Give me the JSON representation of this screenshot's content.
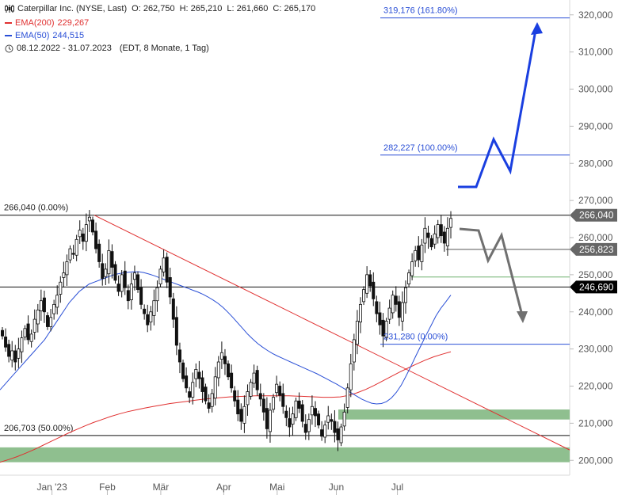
{
  "header": {
    "title": "Caterpillar Inc. (NYSE, Last)",
    "open": "O: 262,750",
    "high": "H: 265,210",
    "low": "L: 261,660",
    "close": "C: 265,170",
    "ema200_label": "EMA(200)",
    "ema200_value": "229,267",
    "ema50_label": "EMA(50)",
    "ema50_value": "244,515",
    "range": "08.12.2022 - 31.07.2023",
    "range_detail": "(EDT, 8 Monate, 1 Tag)",
    "icon": "candlestick-icon",
    "clock_icon": "clock-icon"
  },
  "colors": {
    "ema200": "#e03030",
    "ema50": "#2a4fd6",
    "projection_up": "#1a3fe0",
    "projection_down": "#707070",
    "zone": "#8fbf8f",
    "trendline": "#e03030",
    "fib_text": "#2a4fd6"
  },
  "chart_data": {
    "type": "candlestick",
    "ylim": [
      196000,
      324000
    ],
    "y_ticks": [
      200000,
      210000,
      220000,
      230000,
      240000,
      250000,
      260000,
      270000,
      280000,
      290000,
      300000,
      310000,
      320000
    ],
    "y_tick_labels": [
      "200,000",
      "210,000",
      "220,000",
      "230,000",
      "240,000",
      "250,000",
      "260,000",
      "270,000",
      "280,000",
      "290,000",
      "300,000",
      "310,000",
      "320,000"
    ],
    "x_labels": [
      "Jan '23",
      "Feb",
      "Mär",
      "Apr",
      "Mai",
      "Jun",
      "Jul"
    ],
    "x_label_dates": [
      "2023-01-03",
      "2023-02-01",
      "2023-03-01",
      "2023-04-03",
      "2023-05-01",
      "2023-06-01",
      "2023-07-03"
    ],
    "x_start": "2022-12-08",
    "x_end": "2023-07-31",
    "closes": [
      233500,
      230500,
      228000,
      229500,
      226500,
      230000,
      233000,
      235500,
      232500,
      234000,
      238000,
      240500,
      243000,
      240000,
      236000,
      238500,
      242000,
      244500,
      248000,
      250500,
      253500,
      257000,
      255500,
      259500,
      262000,
      259000,
      263500,
      265500,
      261500,
      257000,
      253500,
      249000,
      251500,
      256500,
      252000,
      248500,
      245500,
      250000,
      246500,
      243000,
      247500,
      250500,
      246000,
      242000,
      239500,
      236500,
      240000,
      243000,
      246500,
      251500,
      254500,
      248000,
      244000,
      238000,
      231000,
      226500,
      222000,
      219500,
      217000,
      221000,
      224500,
      222000,
      218500,
      216000,
      214000,
      218000,
      222500,
      226500,
      229000,
      226000,
      222500,
      219500,
      216000,
      212500,
      210500,
      214500,
      218500,
      221000,
      223500,
      219000,
      216500,
      213000,
      208500,
      213500,
      217000,
      220500,
      217500,
      214500,
      211500,
      209000,
      212500,
      216000,
      214000,
      210500,
      207500,
      211000,
      214500,
      212000,
      209500,
      206500,
      209500,
      212000,
      210500,
      207500,
      205500,
      209000,
      213000,
      219500,
      226000,
      232500,
      237500,
      242000,
      246000,
      250000,
      247000,
      243500,
      239500,
      236500,
      233500,
      237500,
      241000,
      244500,
      242000,
      238500,
      242500,
      246500,
      250500,
      253500,
      256500,
      254000,
      258000,
      262500,
      260000,
      257500,
      261000,
      263500,
      260500,
      258500,
      262500,
      265170
    ],
    "level_lines": [
      {
        "label": "266,040 (0.00%)",
        "value": 266040,
        "tag": "266,040",
        "tag_color": "#666666"
      },
      {
        "label": "206,703 (50.00%)",
        "value": 206703
      },
      {
        "label": "",
        "value": 246690,
        "tag": "246,690",
        "tag_color": "#000000"
      },
      {
        "label": "",
        "value": 256823,
        "tag": "256,823",
        "tag_color": "#666666"
      }
    ],
    "fib_levels": [
      {
        "label": "319,176 (161.80%)",
        "value": 319176
      },
      {
        "label": "282,227 (100.00%)",
        "value": 282227
      },
      {
        "label": "231,280 (0.00%)",
        "value": 231280
      }
    ],
    "green_line_value": 249400,
    "zones": [
      {
        "low": 199500,
        "high": 203500
      },
      {
        "low": 211000,
        "high": 213700
      }
    ]
  },
  "ema50_values": [
    219000,
    220500,
    222000,
    223500,
    225000,
    226500,
    228000,
    229500,
    231000,
    232500,
    234500,
    236500,
    238500,
    240500,
    242500,
    244000,
    245500,
    246500,
    247500,
    248000,
    248500,
    249000,
    249500,
    250000,
    250300,
    250500,
    250700,
    250800,
    250800,
    250600,
    250200,
    249800,
    249300,
    248800,
    248300,
    247800,
    247300,
    246800,
    246300,
    245800,
    245300,
    244700,
    244000,
    243200,
    242300,
    241200,
    239900,
    238500,
    237000,
    235500,
    234000,
    232700,
    231500,
    230500,
    229600,
    228800,
    228100,
    227500,
    226900,
    226300,
    225700,
    225100,
    224500,
    223900,
    223300,
    222600,
    221900,
    221200,
    220500,
    219700,
    218900,
    218100,
    217300,
    216500,
    215900,
    215400,
    215200,
    215300,
    215800,
    216800,
    218300,
    220300,
    222800,
    225500,
    228300,
    231000,
    233700,
    236300,
    238900,
    241000,
    242700,
    244515
  ],
  "ema200_values": [
    199500,
    200200,
    201000,
    201900,
    202900,
    204000,
    205100,
    206200,
    207300,
    208300,
    209300,
    210200,
    211000,
    211800,
    212500,
    213100,
    213600,
    214100,
    214500,
    214900,
    215300,
    215600,
    215900,
    216200,
    216500,
    216700,
    216900,
    217100,
    217200,
    217300,
    217400,
    217400,
    217400,
    217400,
    217400,
    217300,
    217200,
    217100,
    217000,
    217000,
    217100,
    217500,
    218200,
    219100,
    220200,
    221400,
    222600,
    223800,
    224900,
    226000,
    227000,
    227900,
    228600,
    229267
  ]
}
